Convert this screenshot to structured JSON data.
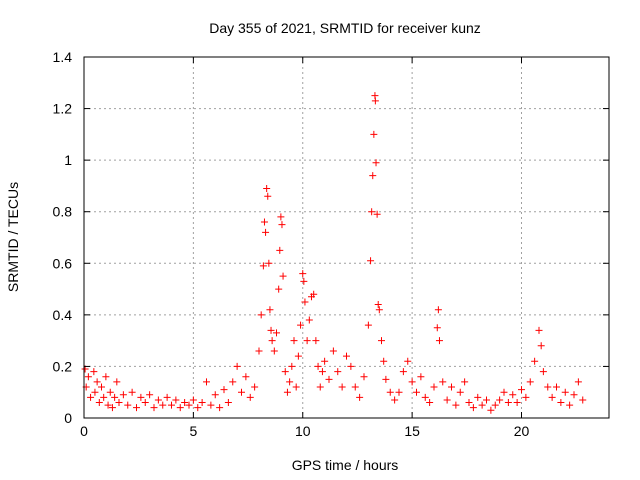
{
  "chart_data": {
    "type": "scatter",
    "title": "Day 355 of 2021, SRMTID for receiver kunz",
    "xlabel": "GPS time / hours",
    "ylabel": "SRMTID / TECUs",
    "xlim": [
      0,
      24
    ],
    "ylim": [
      0,
      1.4
    ],
    "xticks": [
      0,
      5,
      10,
      15,
      20
    ],
    "yticks": [
      0,
      0.2,
      0.4,
      0.6,
      0.8,
      1,
      1.2,
      1.4
    ],
    "grid": true,
    "marker": "+",
    "color": "#ff0000",
    "series": [
      {
        "name": "SRMTID",
        "points": [
          [
            0.05,
            0.19
          ],
          [
            0.1,
            0.12
          ],
          [
            0.2,
            0.16
          ],
          [
            0.3,
            0.08
          ],
          [
            0.45,
            0.18
          ],
          [
            0.5,
            0.1
          ],
          [
            0.6,
            0.14
          ],
          [
            0.7,
            0.06
          ],
          [
            0.8,
            0.12
          ],
          [
            0.9,
            0.08
          ],
          [
            1.0,
            0.16
          ],
          [
            1.1,
            0.05
          ],
          [
            1.2,
            0.1
          ],
          [
            1.3,
            0.04
          ],
          [
            1.4,
            0.08
          ],
          [
            1.5,
            0.14
          ],
          [
            1.6,
            0.06
          ],
          [
            1.8,
            0.09
          ],
          [
            2.0,
            0.05
          ],
          [
            2.2,
            0.1
          ],
          [
            2.4,
            0.04
          ],
          [
            2.6,
            0.08
          ],
          [
            2.8,
            0.06
          ],
          [
            3.0,
            0.09
          ],
          [
            3.2,
            0.04
          ],
          [
            3.4,
            0.07
          ],
          [
            3.6,
            0.05
          ],
          [
            3.8,
            0.08
          ],
          [
            4.0,
            0.05
          ],
          [
            4.2,
            0.07
          ],
          [
            4.4,
            0.04
          ],
          [
            4.6,
            0.06
          ],
          [
            4.8,
            0.05
          ],
          [
            5.0,
            0.07
          ],
          [
            5.2,
            0.04
          ],
          [
            5.4,
            0.06
          ],
          [
            5.6,
            0.14
          ],
          [
            5.8,
            0.05
          ],
          [
            6.0,
            0.09
          ],
          [
            6.2,
            0.04
          ],
          [
            6.4,
            0.11
          ],
          [
            6.6,
            0.06
          ],
          [
            6.8,
            0.14
          ],
          [
            7.0,
            0.2
          ],
          [
            7.2,
            0.1
          ],
          [
            7.4,
            0.16
          ],
          [
            7.6,
            0.08
          ],
          [
            7.8,
            0.12
          ],
          [
            8.0,
            0.26
          ],
          [
            8.1,
            0.4
          ],
          [
            8.2,
            0.59
          ],
          [
            8.25,
            0.76
          ],
          [
            8.3,
            0.72
          ],
          [
            8.35,
            0.89
          ],
          [
            8.4,
            0.86
          ],
          [
            8.45,
            0.6
          ],
          [
            8.5,
            0.42
          ],
          [
            8.55,
            0.34
          ],
          [
            8.6,
            0.3
          ],
          [
            8.7,
            0.26
          ],
          [
            8.8,
            0.33
          ],
          [
            8.9,
            0.5
          ],
          [
            8.95,
            0.65
          ],
          [
            9.0,
            0.78
          ],
          [
            9.05,
            0.75
          ],
          [
            9.1,
            0.55
          ],
          [
            9.2,
            0.18
          ],
          [
            9.3,
            0.1
          ],
          [
            9.4,
            0.14
          ],
          [
            9.5,
            0.2
          ],
          [
            9.6,
            0.3
          ],
          [
            9.7,
            0.12
          ],
          [
            9.8,
            0.24
          ],
          [
            9.9,
            0.36
          ],
          [
            10.0,
            0.56
          ],
          [
            10.05,
            0.53
          ],
          [
            10.1,
            0.45
          ],
          [
            10.2,
            0.3
          ],
          [
            10.3,
            0.38
          ],
          [
            10.4,
            0.47
          ],
          [
            10.5,
            0.48
          ],
          [
            10.6,
            0.3
          ],
          [
            10.7,
            0.2
          ],
          [
            10.8,
            0.12
          ],
          [
            10.9,
            0.18
          ],
          [
            11.0,
            0.22
          ],
          [
            11.2,
            0.15
          ],
          [
            11.4,
            0.26
          ],
          [
            11.6,
            0.18
          ],
          [
            11.8,
            0.12
          ],
          [
            12.0,
            0.24
          ],
          [
            12.2,
            0.2
          ],
          [
            12.4,
            0.12
          ],
          [
            12.6,
            0.08
          ],
          [
            12.8,
            0.16
          ],
          [
            13.0,
            0.36
          ],
          [
            13.1,
            0.61
          ],
          [
            13.15,
            0.8
          ],
          [
            13.2,
            0.94
          ],
          [
            13.25,
            1.1
          ],
          [
            13.3,
            1.25
          ],
          [
            13.32,
            1.23
          ],
          [
            13.35,
            0.99
          ],
          [
            13.4,
            0.79
          ],
          [
            13.45,
            0.44
          ],
          [
            13.5,
            0.42
          ],
          [
            13.6,
            0.3
          ],
          [
            13.7,
            0.22
          ],
          [
            13.8,
            0.15
          ],
          [
            14.0,
            0.1
          ],
          [
            14.2,
            0.07
          ],
          [
            14.4,
            0.1
          ],
          [
            14.6,
            0.18
          ],
          [
            14.8,
            0.22
          ],
          [
            15.0,
            0.14
          ],
          [
            15.2,
            0.1
          ],
          [
            15.4,
            0.16
          ],
          [
            15.6,
            0.08
          ],
          [
            15.8,
            0.06
          ],
          [
            16.0,
            0.12
          ],
          [
            16.15,
            0.35
          ],
          [
            16.2,
            0.42
          ],
          [
            16.25,
            0.3
          ],
          [
            16.4,
            0.14
          ],
          [
            16.6,
            0.07
          ],
          [
            16.8,
            0.12
          ],
          [
            17.0,
            0.05
          ],
          [
            17.2,
            0.1
          ],
          [
            17.4,
            0.14
          ],
          [
            17.6,
            0.06
          ],
          [
            17.8,
            0.04
          ],
          [
            18.0,
            0.08
          ],
          [
            18.2,
            0.05
          ],
          [
            18.4,
            0.07
          ],
          [
            18.6,
            0.03
          ],
          [
            18.8,
            0.05
          ],
          [
            19.0,
            0.07
          ],
          [
            19.2,
            0.1
          ],
          [
            19.4,
            0.06
          ],
          [
            19.6,
            0.09
          ],
          [
            19.8,
            0.06
          ],
          [
            20.0,
            0.11
          ],
          [
            20.2,
            0.08
          ],
          [
            20.4,
            0.14
          ],
          [
            20.6,
            0.22
          ],
          [
            20.8,
            0.34
          ],
          [
            20.9,
            0.28
          ],
          [
            21.0,
            0.18
          ],
          [
            21.2,
            0.12
          ],
          [
            21.4,
            0.08
          ],
          [
            21.6,
            0.12
          ],
          [
            21.8,
            0.06
          ],
          [
            22.0,
            0.1
          ],
          [
            22.2,
            0.05
          ],
          [
            22.4,
            0.09
          ],
          [
            22.6,
            0.14
          ],
          [
            22.8,
            0.07
          ]
        ]
      }
    ]
  }
}
